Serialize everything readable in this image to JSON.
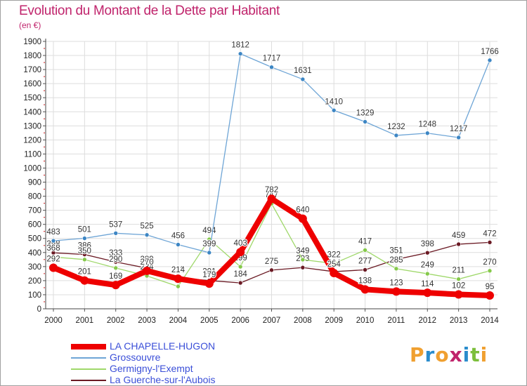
{
  "title": "Evolution du Montant de la Dette par Habitant",
  "subtitle": "(en €)",
  "logo": {
    "letters": [
      {
        "ch": "P",
        "color": "#f0a030"
      },
      {
        "ch": "r",
        "color": "#2a8ccc"
      },
      {
        "ch": "o",
        "color": "#f0a030"
      },
      {
        "ch": "x",
        "color": "#c0246c"
      },
      {
        "ch": "i",
        "color": "#2a8ccc"
      },
      {
        "ch": "t",
        "color": "#7cbf3b"
      },
      {
        "ch": "i",
        "color": "#f0a030"
      }
    ]
  },
  "chart_data": {
    "type": "line",
    "title": "Evolution du Montant de la Dette par Habitant",
    "ylabel": "(en €)",
    "ylim": [
      0,
      1900
    ],
    "yticks": [
      0,
      100,
      200,
      300,
      400,
      500,
      600,
      700,
      800,
      900,
      1000,
      1100,
      1200,
      1300,
      1400,
      1500,
      1600,
      1700,
      1800,
      1900
    ],
    "x": [
      "2000",
      "2001",
      "2002",
      "2003",
      "2004",
      "2005",
      "2006",
      "2007",
      "2008",
      "2009",
      "2010",
      "2011",
      "2012",
      "2013",
      "2014"
    ],
    "grid": true,
    "legend_position": "bottom-left",
    "series": [
      {
        "name": "La Guerche-sur-l'Aubois",
        "color": "#6b1a24",
        "dot": "#6b1a24",
        "width": 1.3,
        "radius": 3,
        "values": [
          398,
          386,
          333,
          289,
          218,
          201,
          184,
          275,
          293,
          264,
          277,
          351,
          398,
          459,
          472
        ],
        "labels": [
          "398",
          "386",
          "333",
          "289",
          "218",
          "201",
          "184",
          "275",
          "293",
          "264",
          "277",
          "351",
          "398",
          "459",
          "472"
        ]
      },
      {
        "name": "Germigny-l'Exempt",
        "color": "#9fd86a",
        "dot": "#85c94a",
        "width": 1.3,
        "radius": 3,
        "values": [
          368,
          350,
          290,
          234,
          159,
          494,
          299,
          747,
          349,
          322,
          417,
          285,
          249,
          211,
          270
        ],
        "labels": [
          "368",
          "350",
          "290",
          "234",
          "",
          "494",
          "299",
          "747",
          "349",
          "322",
          "417",
          "285",
          "249",
          "211",
          "270"
        ]
      },
      {
        "name": "Grossouvre",
        "color": "#6ea5d6",
        "dot": "#3d86c4",
        "width": 1.3,
        "radius": 3,
        "values": [
          483,
          501,
          537,
          525,
          456,
          399,
          1812,
          1717,
          1631,
          1410,
          1329,
          1232,
          1248,
          1217,
          1766
        ],
        "labels": [
          "483",
          "501",
          "537",
          "525",
          "456",
          "399",
          "1812",
          "1717",
          "1631",
          "1410",
          "1329",
          "1232",
          "1248",
          "1217",
          "1766"
        ]
      },
      {
        "name": "LA CHAPELLE-HUGON",
        "color": "#ee0000",
        "dot": "#ee0000",
        "width": 8,
        "radius": 6,
        "values": [
          292,
          201,
          169,
          270,
          214,
          179,
          403,
          782,
          640,
          254,
          138,
          123,
          114,
          102,
          95
        ],
        "labels": [
          "292",
          "201",
          "169",
          "270",
          "214",
          "179",
          "403",
          "782",
          "640",
          "254",
          "138",
          "123",
          "114",
          "102",
          "95"
        ]
      }
    ]
  },
  "legend": {
    "items": [
      {
        "label": "LA CHAPELLE-HUGON",
        "color": "#ee0000",
        "thick": true
      },
      {
        "label": "Grossouvre",
        "color": "#6ea5d6",
        "thick": false
      },
      {
        "label": "Germigny-l'Exempt",
        "color": "#9fd86a",
        "thick": false
      },
      {
        "label": "La Guerche-sur-l'Aubois",
        "color": "#6b1a24",
        "thick": false
      }
    ]
  }
}
